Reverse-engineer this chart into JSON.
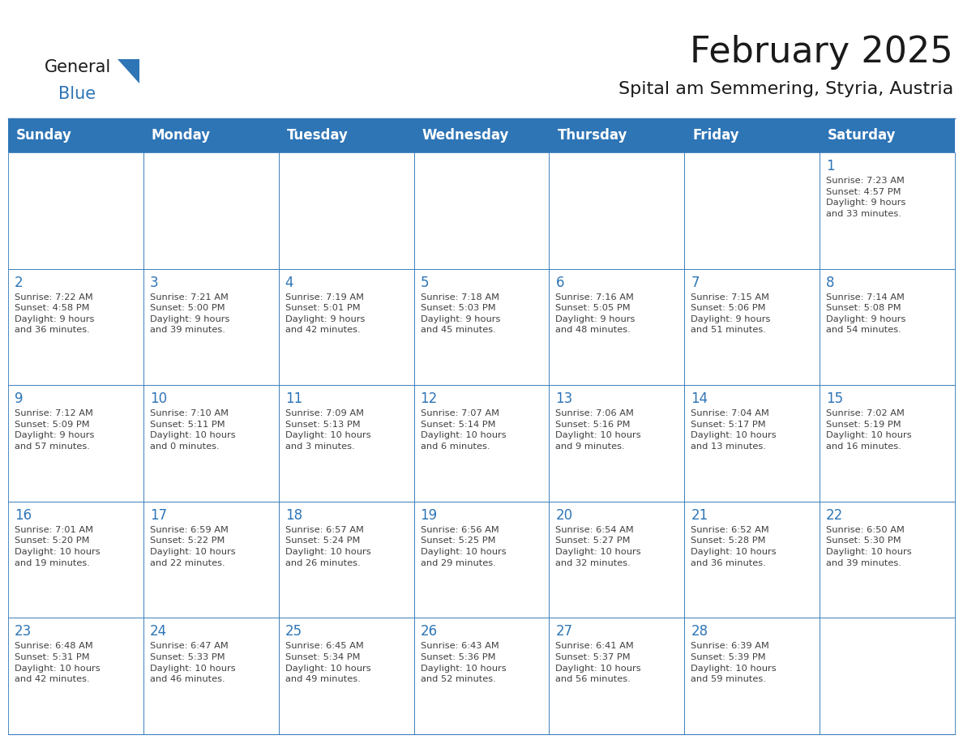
{
  "title": "February 2025",
  "subtitle": "Spital am Semmering, Styria, Austria",
  "header_bg": "#2E75B6",
  "header_text_color": "#FFFFFF",
  "cell_bg": "#FFFFFF",
  "cell_border_color": "#2E75B6",
  "day_number_color": "#2E75B6",
  "info_text_color": "#404040",
  "days_of_week": [
    "Sunday",
    "Monday",
    "Tuesday",
    "Wednesday",
    "Thursday",
    "Friday",
    "Saturday"
  ],
  "weeks": [
    [
      {
        "day": "",
        "info": ""
      },
      {
        "day": "",
        "info": ""
      },
      {
        "day": "",
        "info": ""
      },
      {
        "day": "",
        "info": ""
      },
      {
        "day": "",
        "info": ""
      },
      {
        "day": "",
        "info": ""
      },
      {
        "day": "1",
        "info": "Sunrise: 7:23 AM\nSunset: 4:57 PM\nDaylight: 9 hours\nand 33 minutes."
      }
    ],
    [
      {
        "day": "2",
        "info": "Sunrise: 7:22 AM\nSunset: 4:58 PM\nDaylight: 9 hours\nand 36 minutes."
      },
      {
        "day": "3",
        "info": "Sunrise: 7:21 AM\nSunset: 5:00 PM\nDaylight: 9 hours\nand 39 minutes."
      },
      {
        "day": "4",
        "info": "Sunrise: 7:19 AM\nSunset: 5:01 PM\nDaylight: 9 hours\nand 42 minutes."
      },
      {
        "day": "5",
        "info": "Sunrise: 7:18 AM\nSunset: 5:03 PM\nDaylight: 9 hours\nand 45 minutes."
      },
      {
        "day": "6",
        "info": "Sunrise: 7:16 AM\nSunset: 5:05 PM\nDaylight: 9 hours\nand 48 minutes."
      },
      {
        "day": "7",
        "info": "Sunrise: 7:15 AM\nSunset: 5:06 PM\nDaylight: 9 hours\nand 51 minutes."
      },
      {
        "day": "8",
        "info": "Sunrise: 7:14 AM\nSunset: 5:08 PM\nDaylight: 9 hours\nand 54 minutes."
      }
    ],
    [
      {
        "day": "9",
        "info": "Sunrise: 7:12 AM\nSunset: 5:09 PM\nDaylight: 9 hours\nand 57 minutes."
      },
      {
        "day": "10",
        "info": "Sunrise: 7:10 AM\nSunset: 5:11 PM\nDaylight: 10 hours\nand 0 minutes."
      },
      {
        "day": "11",
        "info": "Sunrise: 7:09 AM\nSunset: 5:13 PM\nDaylight: 10 hours\nand 3 minutes."
      },
      {
        "day": "12",
        "info": "Sunrise: 7:07 AM\nSunset: 5:14 PM\nDaylight: 10 hours\nand 6 minutes."
      },
      {
        "day": "13",
        "info": "Sunrise: 7:06 AM\nSunset: 5:16 PM\nDaylight: 10 hours\nand 9 minutes."
      },
      {
        "day": "14",
        "info": "Sunrise: 7:04 AM\nSunset: 5:17 PM\nDaylight: 10 hours\nand 13 minutes."
      },
      {
        "day": "15",
        "info": "Sunrise: 7:02 AM\nSunset: 5:19 PM\nDaylight: 10 hours\nand 16 minutes."
      }
    ],
    [
      {
        "day": "16",
        "info": "Sunrise: 7:01 AM\nSunset: 5:20 PM\nDaylight: 10 hours\nand 19 minutes."
      },
      {
        "day": "17",
        "info": "Sunrise: 6:59 AM\nSunset: 5:22 PM\nDaylight: 10 hours\nand 22 minutes."
      },
      {
        "day": "18",
        "info": "Sunrise: 6:57 AM\nSunset: 5:24 PM\nDaylight: 10 hours\nand 26 minutes."
      },
      {
        "day": "19",
        "info": "Sunrise: 6:56 AM\nSunset: 5:25 PM\nDaylight: 10 hours\nand 29 minutes."
      },
      {
        "day": "20",
        "info": "Sunrise: 6:54 AM\nSunset: 5:27 PM\nDaylight: 10 hours\nand 32 minutes."
      },
      {
        "day": "21",
        "info": "Sunrise: 6:52 AM\nSunset: 5:28 PM\nDaylight: 10 hours\nand 36 minutes."
      },
      {
        "day": "22",
        "info": "Sunrise: 6:50 AM\nSunset: 5:30 PM\nDaylight: 10 hours\nand 39 minutes."
      }
    ],
    [
      {
        "day": "23",
        "info": "Sunrise: 6:48 AM\nSunset: 5:31 PM\nDaylight: 10 hours\nand 42 minutes."
      },
      {
        "day": "24",
        "info": "Sunrise: 6:47 AM\nSunset: 5:33 PM\nDaylight: 10 hours\nand 46 minutes."
      },
      {
        "day": "25",
        "info": "Sunrise: 6:45 AM\nSunset: 5:34 PM\nDaylight: 10 hours\nand 49 minutes."
      },
      {
        "day": "26",
        "info": "Sunrise: 6:43 AM\nSunset: 5:36 PM\nDaylight: 10 hours\nand 52 minutes."
      },
      {
        "day": "27",
        "info": "Sunrise: 6:41 AM\nSunset: 5:37 PM\nDaylight: 10 hours\nand 56 minutes."
      },
      {
        "day": "28",
        "info": "Sunrise: 6:39 AM\nSunset: 5:39 PM\nDaylight: 10 hours\nand 59 minutes."
      },
      {
        "day": "",
        "info": ""
      }
    ]
  ],
  "logo_triangle_color": "#2E75B6",
  "logo_general_color": "#1a1a1a",
  "logo_blue_color": "#2E75B6",
  "title_fontsize": 32,
  "subtitle_fontsize": 16,
  "header_fontsize": 12,
  "day_num_fontsize": 12,
  "info_fontsize": 8.2
}
